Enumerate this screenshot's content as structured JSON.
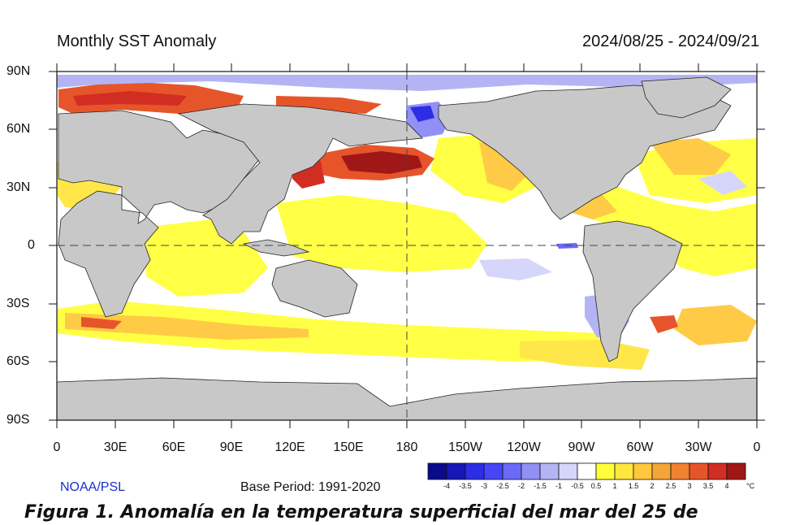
{
  "map": {
    "title": "Monthly SST Anomaly",
    "period": "2024/08/25 - 2024/09/21",
    "latitude_labels": [
      "90N",
      "60N",
      "30N",
      "0",
      "30S",
      "60S",
      "90S"
    ],
    "longitude_labels": [
      "0",
      "30E",
      "60E",
      "90E",
      "120E",
      "150E",
      "180",
      "150W",
      "120W",
      "90W",
      "60W",
      "30W",
      "0"
    ],
    "credit": "NOAA/PSL",
    "base_period": "Base Period: 1991-2020",
    "colors": {
      "land": "#c8c8c8",
      "ocean_neutral": "#ffffff",
      "coastline": "#222222"
    }
  },
  "colorbar": {
    "labels": [
      "-4",
      "-3.5",
      "-3",
      "-2.5",
      "-2",
      "-1.5",
      "-1",
      "-0.5",
      "0.5",
      "1",
      "1.5",
      "2",
      "2.5",
      "3",
      "3.5",
      "4"
    ],
    "unit": "°C",
    "colors": [
      "#0a0a8c",
      "#1717b3",
      "#2d2de6",
      "#4646f5",
      "#6a6af7",
      "#9090f5",
      "#b4b4f5",
      "#d6d6fa",
      "#ffffff",
      "#ffff3c",
      "#ffe640",
      "#ffc83c",
      "#f5a537",
      "#f08230",
      "#e6552a",
      "#d22d23",
      "#a01717"
    ]
  },
  "caption": {
    "text": "Figura 1. Anomalía en la temperatura superficial del mar del 25 de"
  }
}
